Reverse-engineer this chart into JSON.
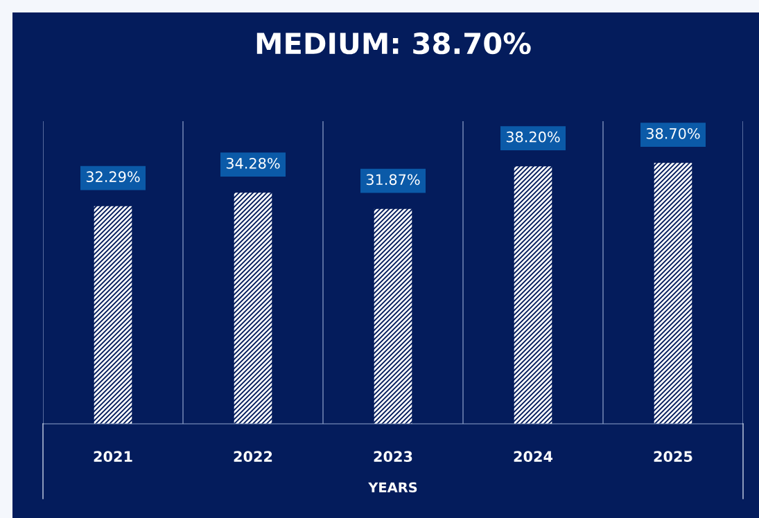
{
  "chart_data": {
    "type": "bar",
    "title": "MEDIUM: 38.70%",
    "xlabel": "YEARS",
    "categories": [
      "2021",
      "2022",
      "2023",
      "2024",
      "2025"
    ],
    "values": [
      32.29,
      34.28,
      31.87,
      38.2,
      38.7
    ],
    "value_labels": [
      "32.29%",
      "34.28%",
      "31.87%",
      "38.20%",
      "38.70%"
    ],
    "color": "#ffffff",
    "grid": "x",
    "legend": false
  }
}
